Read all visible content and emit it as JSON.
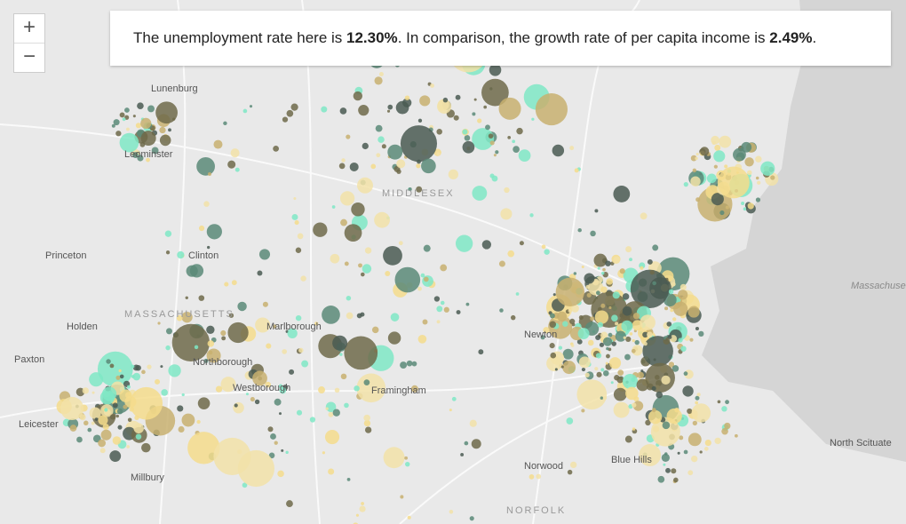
{
  "zoom": {
    "in": "+",
    "out": "−"
  },
  "banner": {
    "lead": "The unemployment rate here is ",
    "unemployment": "12.30%",
    "middle": ". In comparison, the growth rate of per capita income is ",
    "income": "2.49%",
    "end": "."
  },
  "places": [
    "Lunenburg",
    "Leominster",
    "MIDDLESEX",
    "Princeton",
    "Clinton",
    "MASSACHUSETTS",
    "Holden",
    "Marlborough",
    "Paxton",
    "Northborough",
    "Westborough",
    "Framingham",
    "Leicester",
    "Millbury",
    "Newton",
    "Norwood",
    "Blue Hills",
    "North Scituate",
    "Massachusetts Bay",
    "NORFOLK"
  ]
}
